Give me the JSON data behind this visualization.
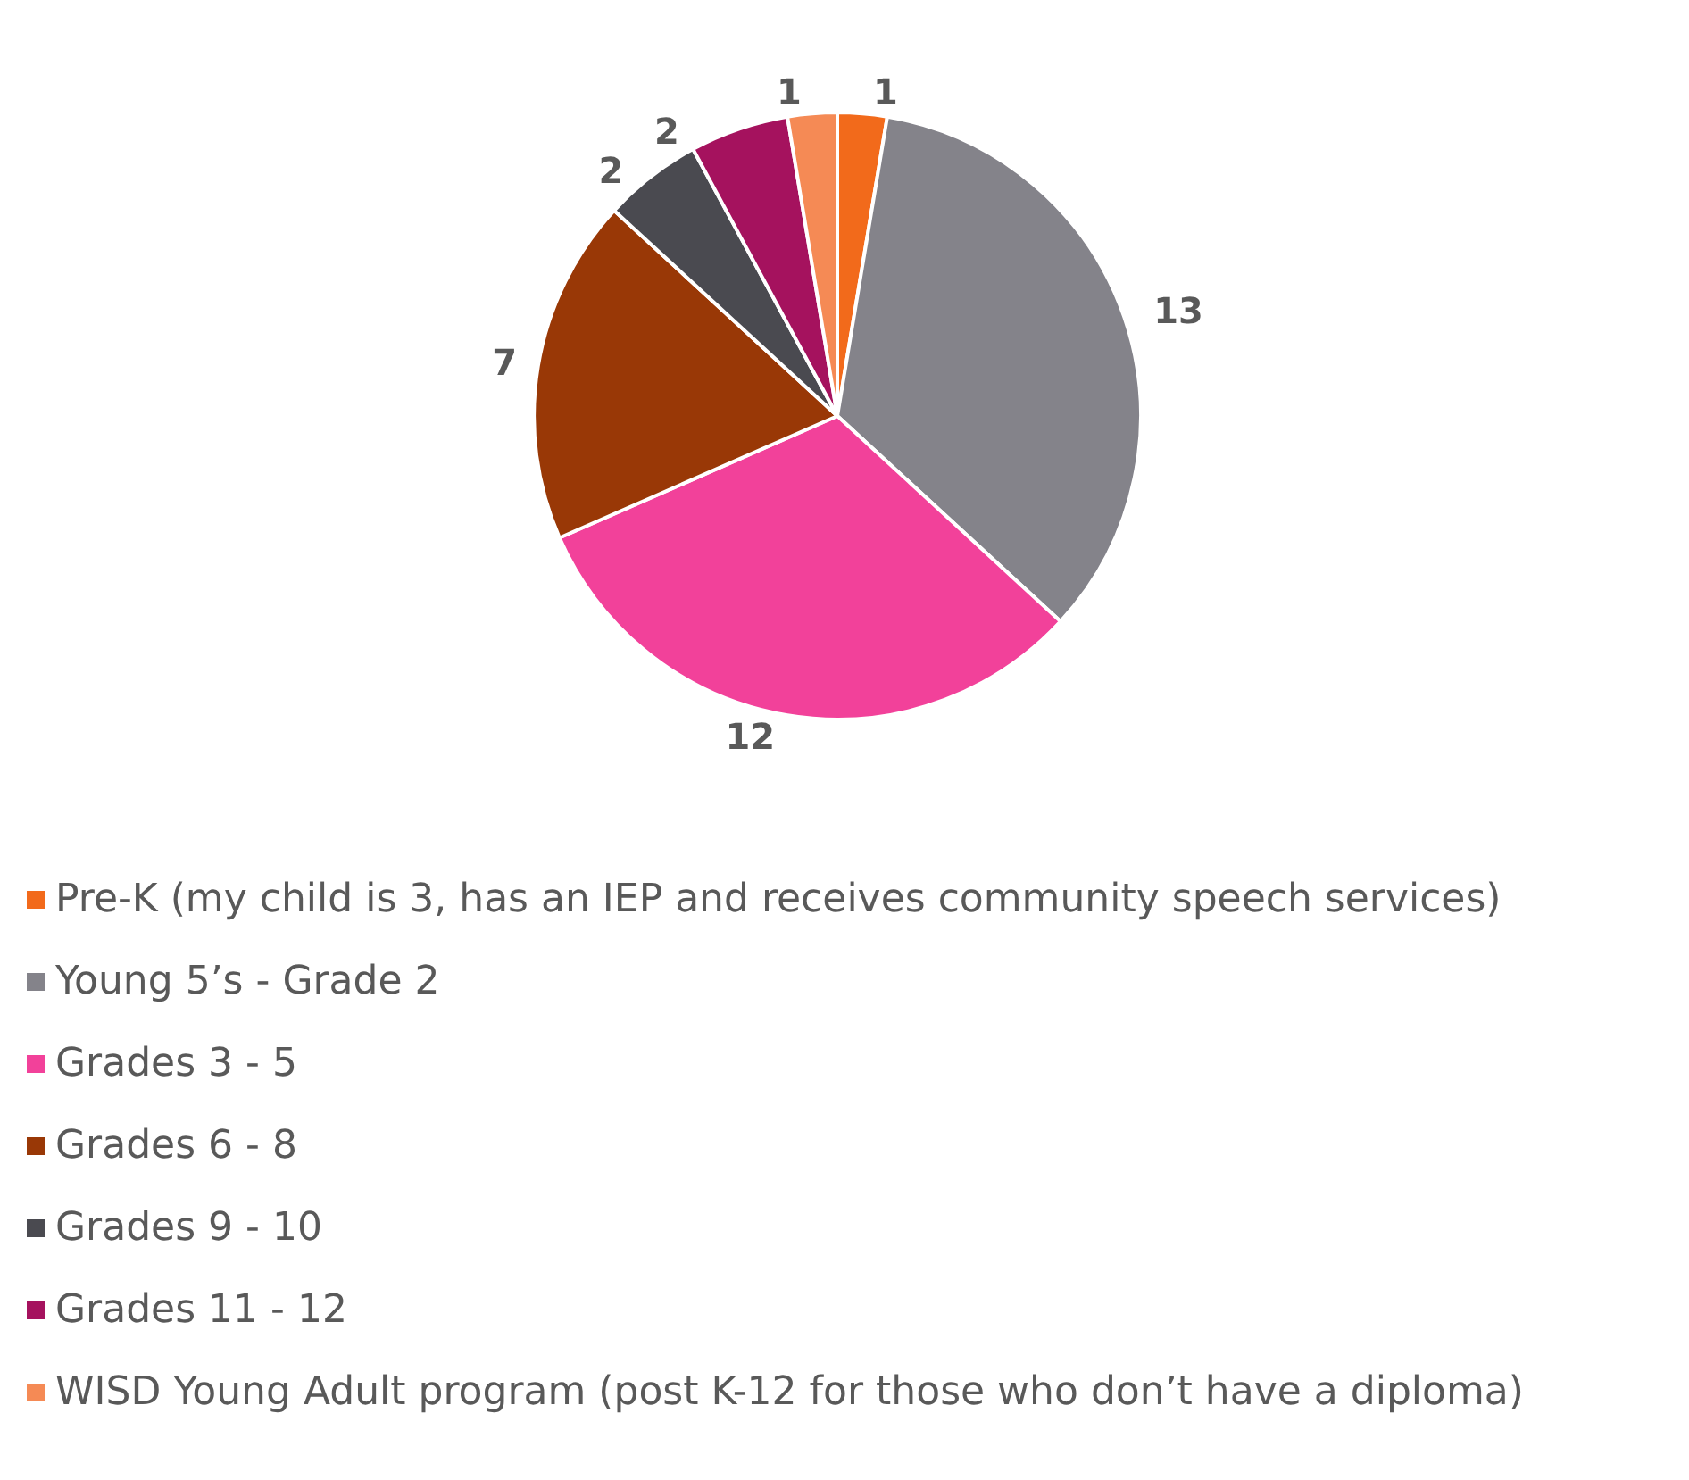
{
  "chart_data": {
    "type": "pie",
    "categories": [
      "Pre-K (my child is 3, has an IEP and receives community speech services)",
      "Young 5’s - Grade 2",
      "Grades 3 - 5",
      "Grades 6 - 8",
      "Grades 9 - 10",
      "Grades 11 - 12",
      "WISD Young Adult program (post K-12 for those who don’t have a diploma)"
    ],
    "values": [
      1,
      13,
      12,
      7,
      2,
      2,
      1
    ],
    "colors": [
      "#f26a1b",
      "#84838a",
      "#f2419a",
      "#993806",
      "#4a4a50",
      "#a5125e",
      "#f58a55"
    ],
    "data_labels": true,
    "legend": "bottom"
  }
}
